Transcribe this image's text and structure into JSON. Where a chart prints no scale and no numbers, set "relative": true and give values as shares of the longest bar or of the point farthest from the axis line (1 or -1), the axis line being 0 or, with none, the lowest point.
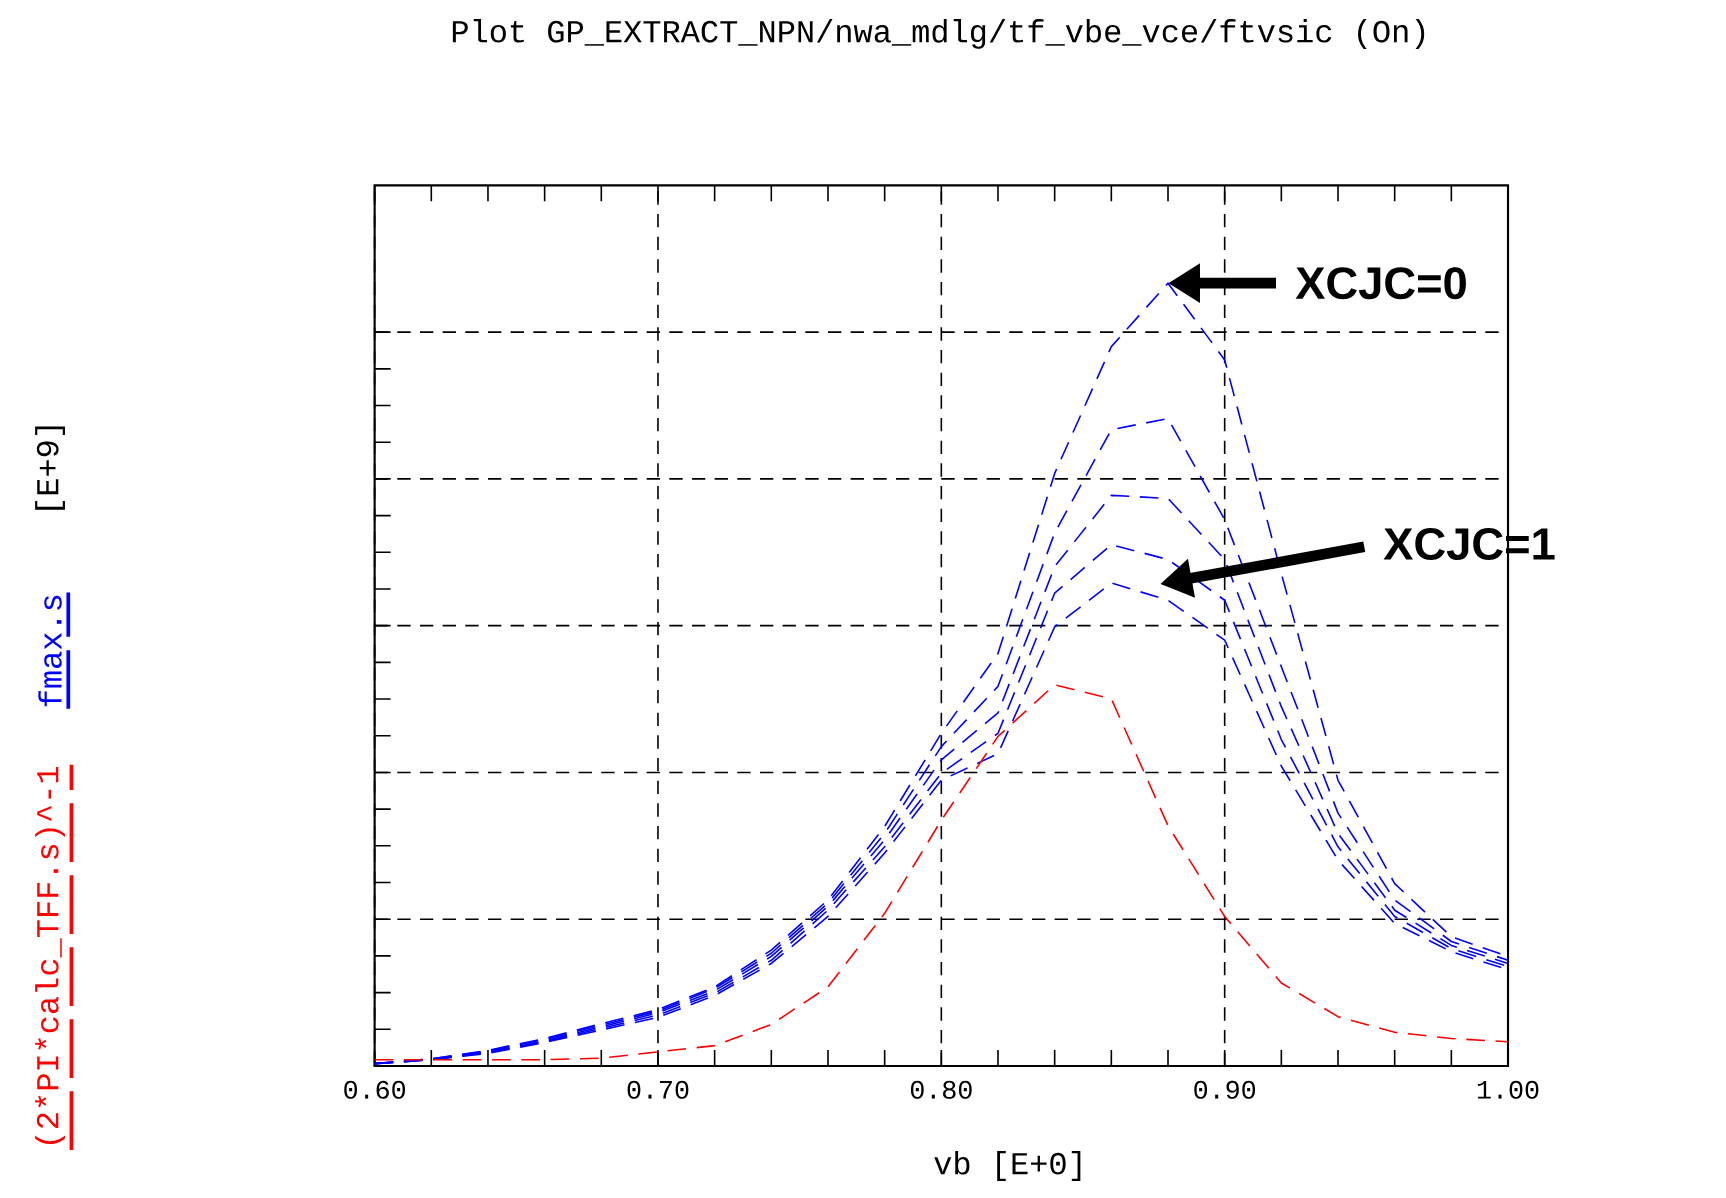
{
  "chart_data": {
    "type": "line",
    "title": "Plot GP_EXTRACT_NPN/nwa_mdlg/tf_vbe_vce/ftvsic (On)",
    "xlabel": "vb [E+0]",
    "relative": true,
    "x": [
      0.6,
      0.62,
      0.64,
      0.66,
      0.68,
      0.7,
      0.72,
      0.74,
      0.76,
      0.78,
      0.8,
      0.82,
      0.84,
      0.86,
      0.88,
      0.9,
      0.92,
      0.94,
      0.96,
      0.98,
      1.0
    ],
    "xlim": [
      0.6,
      1.0
    ],
    "xticks": [
      {
        "value": 0.6,
        "label": "0.60"
      },
      {
        "value": 0.7,
        "label": "0.70"
      },
      {
        "value": 0.8,
        "label": "0.80"
      },
      {
        "value": 0.9,
        "label": "0.90"
      },
      {
        "value": 1.0,
        "label": "1.00"
      }
    ],
    "grid": true,
    "legend": "left",
    "line_style": "dashed",
    "marker": "none",
    "series": [
      {
        "name": "fmax.s",
        "color": "#0000ff",
        "values": [
          0.003,
          0.009,
          0.02,
          0.035,
          0.054,
          0.072,
          0.101,
          0.148,
          0.212,
          0.306,
          0.425,
          0.527,
          0.757,
          0.919,
          1.0,
          0.902,
          0.629,
          0.365,
          0.233,
          0.165,
          0.14
        ]
      },
      {
        "color": "#0000ff",
        "values": [
          0.003,
          0.009,
          0.019,
          0.034,
          0.052,
          0.07,
          0.099,
          0.144,
          0.208,
          0.297,
          0.408,
          0.485,
          0.681,
          0.813,
          0.827,
          0.698,
          0.51,
          0.323,
          0.212,
          0.159,
          0.135
        ]
      },
      {
        "color": "#0000ff",
        "values": [
          0.003,
          0.008,
          0.018,
          0.032,
          0.05,
          0.068,
          0.096,
          0.14,
          0.204,
          0.289,
          0.391,
          0.451,
          0.638,
          0.729,
          0.725,
          0.647,
          0.459,
          0.297,
          0.199,
          0.154,
          0.131
        ]
      },
      {
        "color": "#0000ff",
        "values": [
          0.003,
          0.008,
          0.017,
          0.031,
          0.048,
          0.065,
          0.093,
          0.135,
          0.199,
          0.28,
          0.374,
          0.425,
          0.604,
          0.666,
          0.647,
          0.595,
          0.417,
          0.28,
          0.191,
          0.15,
          0.127
        ]
      },
      {
        "color": "#0000ff",
        "values": [
          0.003,
          0.008,
          0.016,
          0.03,
          0.046,
          0.062,
          0.09,
          0.131,
          0.191,
          0.272,
          0.365,
          0.399,
          0.561,
          0.617,
          0.595,
          0.544,
          0.383,
          0.263,
          0.182,
          0.146,
          0.123
        ]
      },
      {
        "name": "(2*PI*calc_TFF.s)^-1",
        "color": "#ff0000",
        "values": [
          0.008,
          0.008,
          0.008,
          0.008,
          0.01,
          0.018,
          0.026,
          0.053,
          0.101,
          0.195,
          0.314,
          0.421,
          0.487,
          0.469,
          0.307,
          0.191,
          0.106,
          0.063,
          0.043,
          0.035,
          0.031
        ]
      }
    ],
    "annotations": [
      {
        "text": "XCJC=0",
        "x": 0.88,
        "y": 1.0
      },
      "XCJC=1",
      "[E+9]"
    ]
  }
}
